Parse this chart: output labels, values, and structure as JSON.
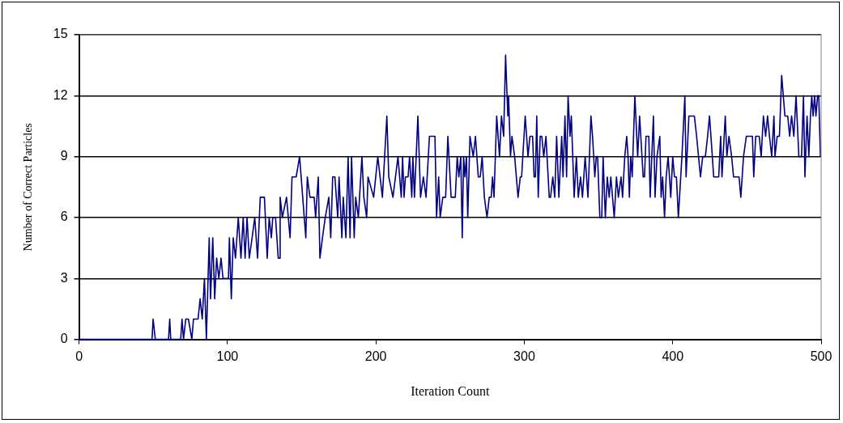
{
  "chart_data": {
    "type": "line",
    "xlabel": "Iteration Count",
    "ylabel": "Number of Correct Particles",
    "xlim": [
      0,
      500
    ],
    "ylim": [
      0,
      15
    ],
    "xticks": [
      0,
      100,
      200,
      300,
      400,
      500
    ],
    "yticks": [
      0,
      3,
      6,
      9,
      12,
      15
    ],
    "grid": "y",
    "legend": false,
    "marker": "none",
    "line_style": "solid",
    "series": [
      {
        "color": "#000080",
        "x": [
          0,
          49.2,
          49.9,
          51.4,
          60.3,
          61.1,
          61.8,
          68.5,
          69.4,
          70.4,
          71.9,
          72.8,
          73.7,
          76,
          77.1,
          80.2,
          81.6,
          83,
          84.5,
          85.8,
          87.7,
          88.6,
          90.1,
          91.4,
          92.7,
          94.2,
          95.7,
          97,
          100.7,
          101.3,
          102.6,
          103.9,
          105.4,
          107.3,
          109.1,
          110.6,
          111.9,
          113.2,
          114.7,
          116.6,
          118.4,
          120.3,
          122.1,
          124.9,
          126.8,
          128.1,
          129.6,
          130.5,
          132.4,
          134.2,
          135.2,
          135.5,
          137,
          139.8,
          142.2,
          143.5,
          146.3,
          148.6,
          152.8,
          153.8,
          155.6,
          158.4,
          159.4,
          161.2,
          162.3,
          164,
          165.9,
          168.3,
          169.6,
          170.9,
          172.4,
          174.3,
          175.2,
          177.1,
          178,
          179.8,
          181.3,
          182.6,
          183.6,
          185.4,
          186.4,
          188.2,
          190.6,
          191.9,
          193.8,
          194.7,
          198.5,
          201.3,
          204.4,
          207.4,
          208.7,
          211.5,
          214.9,
          217.1,
          218,
          219,
          219.9,
          221.7,
          222.7,
          224.2,
          224.9,
          226,
          228.3,
          230.1,
          232,
          233.8,
          236.1,
          237.6,
          239.8,
          240.9,
          242.3,
          243.3,
          245.1,
          247,
          248.5,
          250.7,
          253.5,
          254.8,
          255.9,
          257.2,
          258.2,
          259.1,
          260,
          261,
          261.9,
          263.4,
          265.6,
          267.1,
          269,
          270.3,
          271.6,
          273.1,
          274.9,
          276.4,
          277.7,
          278.6,
          279.6,
          281.4,
          283.3,
          284.6,
          286.1,
          287.4,
          288.9,
          289.4,
          290.7,
          291.7,
          293.5,
          295.8,
          297.3,
          298.2,
          300.6,
          302.5,
          303.8,
          305.6,
          306.6,
          307.5,
          308.4,
          309.4,
          310.7,
          311.8,
          313.1,
          314.6,
          316.8,
          317.7,
          319.2,
          320.5,
          321.8,
          323.3,
          325.2,
          326.1,
          327.4,
          328.5,
          329.5,
          330.8,
          331.7,
          333.6,
          335.1,
          336.4,
          337.9,
          339.2,
          341,
          342.9,
          344.9,
          346,
          347.5,
          348.5,
          349.4,
          350.9,
          352.2,
          353.1,
          354.6,
          355.9,
          357.2,
          358.3,
          360.6,
          362.1,
          363.4,
          365.2,
          366.2,
          367.7,
          369,
          369.9,
          370.8,
          371.7,
          372.7,
          374.5,
          376.4,
          377.7,
          380.1,
          381,
          382,
          383.9,
          384.8,
          387,
          388.1,
          389.4,
          391.3,
          392.2,
          393.2,
          394.5,
          395.6,
          396.9,
          398.7,
          400,
          401.2,
          402.5,
          403.8,
          406.2,
          408.2,
          409,
          410.9,
          413.1,
          414.6,
          416.1,
          418.7,
          420.2,
          422,
          423.5,
          424.8,
          426.7,
          427.6,
          429.5,
          431,
          432.3,
          433.2,
          435.4,
          436.5,
          437.9,
          439.7,
          441,
          442.5,
          444.7,
          445.9,
          447.7,
          449.6,
          452.2,
          453.7,
          454.6,
          455.9,
          458.3,
          459.6,
          461.1,
          462.6,
          463.9,
          465.2,
          466.7,
          468.2,
          468.9,
          470.4,
          471.9,
          473.4,
          475.6,
          477.5,
          478.8,
          480.1,
          481.6,
          483.1,
          485,
          486.8,
          488.1,
          489.1,
          490.5,
          491.7,
          492.8,
          493.7,
          494.6,
          495.6,
          496.5,
          497.6,
          498.4,
          499.5
        ],
        "values": [
          0,
          0,
          1,
          0,
          0,
          1,
          0,
          0,
          1,
          0,
          1,
          1,
          1,
          0,
          1,
          1,
          2,
          1,
          3,
          0,
          5,
          2,
          5,
          2,
          4,
          3,
          4,
          3,
          3,
          5,
          2,
          5,
          4,
          6,
          4,
          6,
          4,
          6,
          4,
          5,
          6,
          4,
          7,
          7,
          4,
          6,
          5,
          6,
          6,
          4,
          4,
          7,
          6,
          7,
          5,
          8,
          8,
          9,
          5,
          8,
          7,
          7,
          6,
          8,
          4,
          5,
          6,
          7,
          5,
          8,
          8,
          6,
          8,
          5,
          7,
          5,
          9,
          5,
          9,
          5,
          7,
          6,
          9,
          7,
          6,
          8,
          7,
          9,
          7,
          11,
          8,
          7,
          9,
          7,
          9,
          7,
          8,
          8,
          9,
          7,
          9,
          7,
          11,
          7,
          8,
          7,
          10,
          10,
          10,
          6,
          8,
          6,
          7,
          7,
          10,
          7,
          7,
          9,
          8,
          9,
          5,
          9,
          8,
          9,
          6,
          10,
          9,
          10,
          8,
          8,
          9,
          7,
          6,
          7,
          7,
          8,
          7,
          11,
          9,
          11,
          10,
          14,
          11,
          12,
          9,
          10,
          9,
          7,
          8,
          8,
          11,
          9,
          10,
          10,
          8,
          8,
          11,
          7,
          10,
          10,
          9,
          10,
          7,
          7,
          8,
          7,
          10,
          7,
          10,
          8,
          11,
          8,
          12,
          10,
          11,
          7,
          9,
          7,
          8,
          7,
          9,
          7,
          11,
          10,
          8,
          9,
          9,
          6,
          6,
          9,
          6,
          8,
          7,
          8,
          6,
          8,
          7,
          8,
          7,
          9,
          10,
          9,
          7,
          9,
          8,
          12,
          9,
          11,
          8,
          8,
          10,
          10,
          7,
          11,
          7,
          9,
          10,
          7,
          8,
          6,
          8,
          9,
          7,
          9,
          8,
          8,
          6,
          9,
          12,
          8,
          11,
          11,
          11,
          10,
          8,
          9,
          9,
          10,
          11,
          9,
          8,
          8,
          8,
          10,
          8,
          11,
          9,
          10,
          9,
          8,
          8,
          8,
          7,
          9,
          10,
          10,
          10,
          8,
          10,
          10,
          9,
          11,
          10,
          11,
          10,
          9,
          11,
          9,
          10,
          10,
          13,
          11,
          11,
          10,
          11,
          10,
          12,
          9,
          9,
          12,
          8,
          11,
          9,
          11,
          12,
          11,
          12,
          11,
          12,
          12,
          9
        ]
      }
    ]
  }
}
